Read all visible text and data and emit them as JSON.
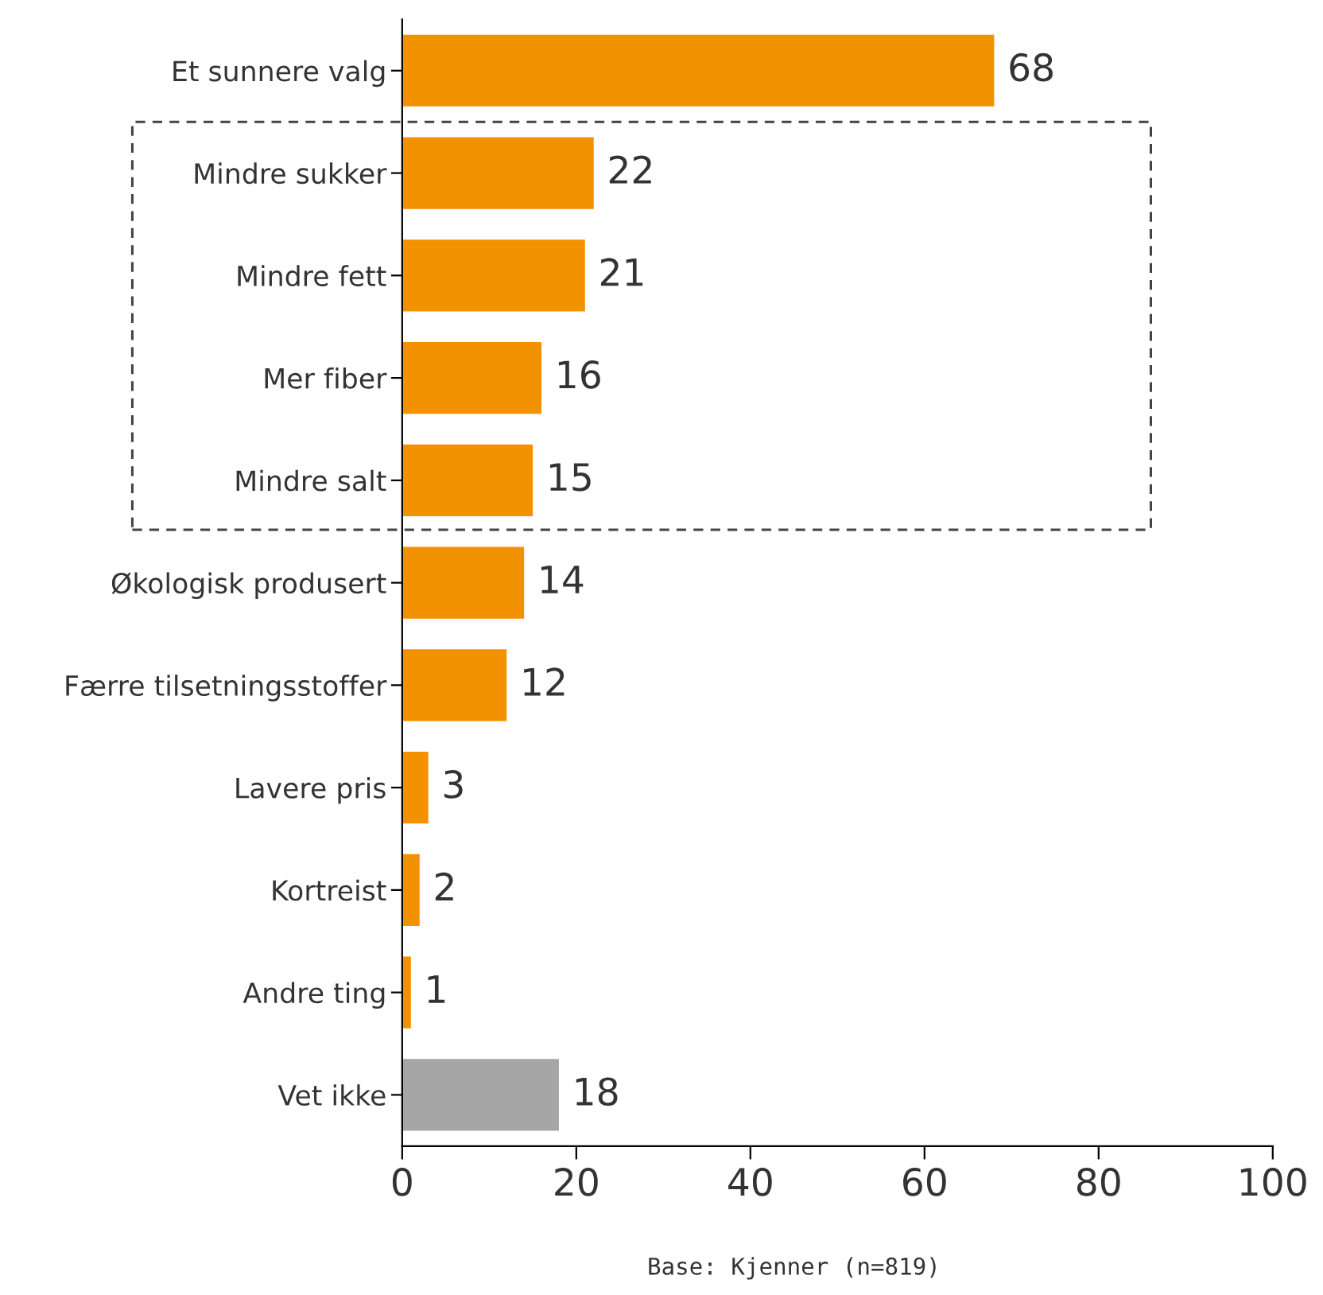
{
  "chart_data": {
    "type": "bar",
    "orientation": "horizontal",
    "categories": [
      "Et sunnere valg",
      "Mindre sukker",
      "Mindre fett",
      "Mer fiber",
      "Mindre salt",
      "Økologisk produsert",
      "Færre tilsetningsstoffer",
      "Lavere pris",
      "Kortreist",
      "Andre ting",
      "Vet ikke"
    ],
    "values": [
      68,
      22,
      21,
      16,
      15,
      14,
      12,
      3,
      2,
      1,
      18
    ],
    "colors": [
      "#f39200",
      "#f39200",
      "#f39200",
      "#f39200",
      "#f39200",
      "#f39200",
      "#f39200",
      "#f39200",
      "#f39200",
      "#f39200",
      "#a6a6a6"
    ],
    "xlim": [
      0,
      100
    ],
    "xticks": [
      0,
      20,
      40,
      60,
      80,
      100
    ],
    "data_labels": true,
    "grid": false,
    "legend": false,
    "annotations": [
      "Base: Kjenner (n=819)"
    ]
  }
}
